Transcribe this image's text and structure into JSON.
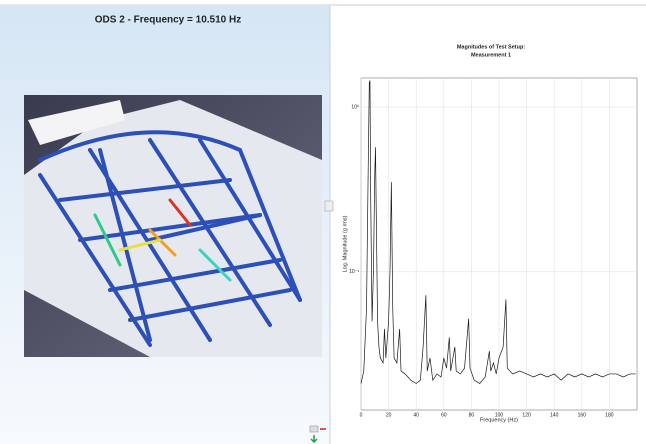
{
  "panel": {
    "title": "ODS 2 - Frequency = 10.510 Hz"
  },
  "chart_data": {
    "type": "line",
    "title": "Magnitudes of Test Setup:",
    "subtitle": "Measurement 1",
    "x_label": "Frequency (Hz)",
    "y_label": "Log. Magnitude (g rms)",
    "x": [
      0,
      2,
      4,
      5,
      6,
      6.5,
      7,
      8,
      9,
      10,
      10.5,
      11,
      12,
      13,
      14,
      16,
      17,
      18,
      20,
      21,
      22,
      23,
      24,
      26,
      28,
      29,
      32,
      36,
      40,
      43,
      45,
      47,
      48,
      50,
      52,
      55,
      58,
      60,
      62,
      64,
      65,
      68,
      69,
      72,
      75,
      78,
      79,
      82,
      86,
      90,
      93,
      94,
      96,
      98,
      100,
      103,
      105,
      106,
      110,
      115,
      120,
      125,
      130,
      135,
      140,
      145,
      150,
      155,
      160,
      165,
      170,
      175,
      180,
      185,
      190,
      195,
      199
    ],
    "values": [
      0.021,
      0.025,
      0.06,
      0.3,
      1.4,
      1.45,
      0.3,
      0.05,
      0.1,
      0.4,
      0.57,
      0.25,
      0.05,
      0.035,
      0.03,
      0.028,
      0.045,
      0.03,
      0.05,
      0.1,
      0.35,
      0.06,
      0.03,
      0.028,
      0.045,
      0.025,
      0.024,
      0.022,
      0.021,
      0.022,
      0.035,
      0.072,
      0.025,
      0.03,
      0.022,
      0.024,
      0.023,
      0.03,
      0.026,
      0.04,
      0.025,
      0.035,
      0.025,
      0.024,
      0.026,
      0.052,
      0.026,
      0.022,
      0.021,
      0.023,
      0.033,
      0.025,
      0.028,
      0.024,
      0.03,
      0.035,
      0.068,
      0.026,
      0.024,
      0.025,
      0.024,
      0.023,
      0.024,
      0.023,
      0.024,
      0.022,
      0.024,
      0.023,
      0.024,
      0.023,
      0.024,
      0.023,
      0.024,
      0.024,
      0.023,
      0.024,
      0.024
    ],
    "color": "#1a1a1a",
    "xlim": [
      0,
      200
    ],
    "ylim": [
      0.0145,
      1.5
    ],
    "xticks": [
      0,
      20,
      40,
      60,
      80,
      100,
      120,
      140,
      160,
      180
    ],
    "yticks": [
      {
        "value": 0.1,
        "label": "10⁻¹"
      },
      {
        "value": 1,
        "label": "10⁰"
      }
    ],
    "log_y": true,
    "grid": true
  }
}
